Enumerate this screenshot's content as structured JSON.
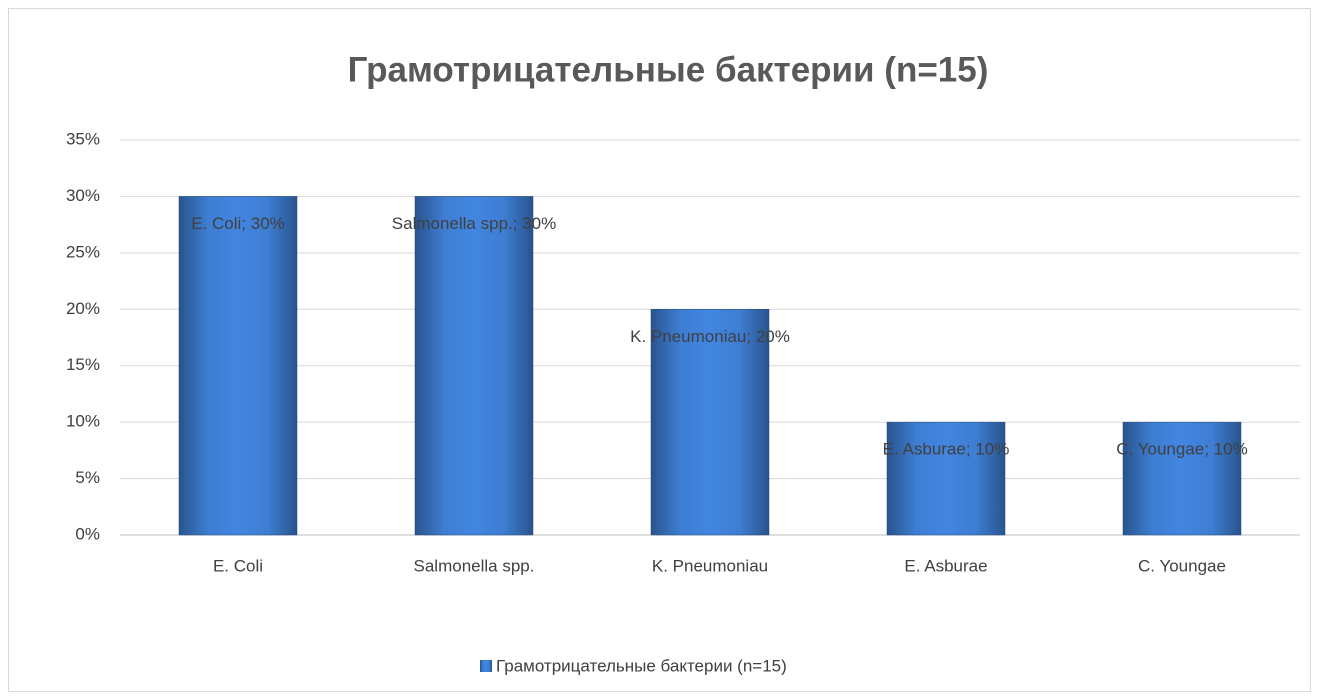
{
  "chart_data": {
    "type": "bar",
    "title": "Грамотрицательные бактерии (n=15)",
    "categories": [
      "E. Coli",
      "Salmonella spp.",
      "K. Pneumoniau",
      "E. Asburae",
      "C. Youngae"
    ],
    "series": [
      {
        "name": "Грамотрицательные бактерии (n=15)",
        "color": "#3b78c9",
        "values": [
          30,
          30,
          20,
          10,
          10
        ],
        "value_labels": [
          "E. Coli; 30%",
          "Salmonella spp.; 30%",
          "K. Pneumoniau; 20%",
          "E. Asburae; 10%",
          "C. Youngae; 10%"
        ]
      }
    ],
    "ylim": [
      0,
      35
    ],
    "yticks": [
      {
        "value": 0,
        "label": "0%"
      },
      {
        "value": 5,
        "label": "5%"
      },
      {
        "value": 10,
        "label": "10%"
      },
      {
        "value": 15,
        "label": "15%"
      },
      {
        "value": 20,
        "label": "20%"
      },
      {
        "value": 25,
        "label": "25%"
      },
      {
        "value": 30,
        "label": "30%"
      },
      {
        "value": 35,
        "label": "35%"
      }
    ],
    "grid": true,
    "legend": "bottom"
  }
}
